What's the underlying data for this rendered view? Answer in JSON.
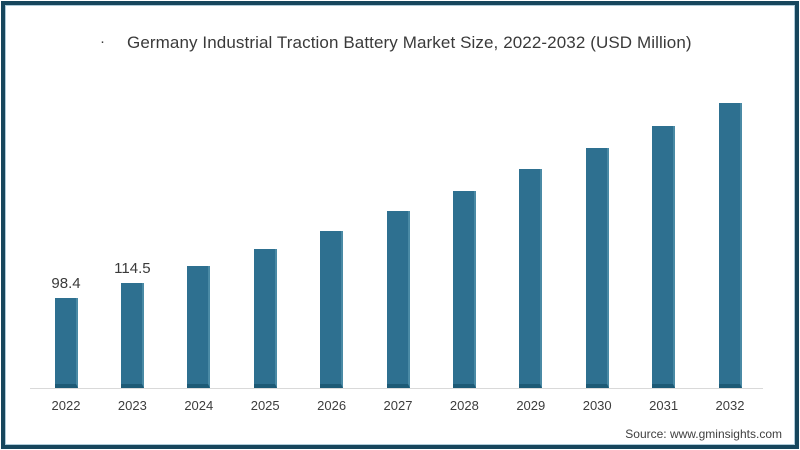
{
  "title": {
    "bullet": "·",
    "text": "Germany Industrial Traction Battery Market Size, 2022-2032 (USD Million)"
  },
  "source": {
    "text": "Source: www.gminsights.com"
  },
  "colors": {
    "frame_border": "#17465c",
    "frame_inner_line": "#aecbd9",
    "bar_fill": "#2e7090",
    "bar_edge_dark": "#1d5a76",
    "bar_edge_light": "#4a8aa5",
    "axis_line": "#d9d9d9",
    "text": "#3a3a3a"
  },
  "chart_data": {
    "type": "bar",
    "title": "Germany Industrial Traction Battery Market Size, 2022-2032 (USD Million)",
    "xlabel": "",
    "ylabel": "USD Million",
    "categories": [
      "2022",
      "2023",
      "2024",
      "2025",
      "2026",
      "2027",
      "2028",
      "2029",
      "2030",
      "2031",
      "2032"
    ],
    "values": [
      98.4,
      114.5,
      133.4,
      152.0,
      171.6,
      193.5,
      215.4,
      239.4,
      262.4,
      286.4,
      311.6
    ],
    "value_labels": [
      "98.4",
      "114.5",
      "",
      "",
      "",
      "",
      "",
      "",
      "",
      "",
      ""
    ],
    "ylim": [
      0,
      340
    ],
    "grid": false,
    "legend": false,
    "y_axis_visible": false
  }
}
